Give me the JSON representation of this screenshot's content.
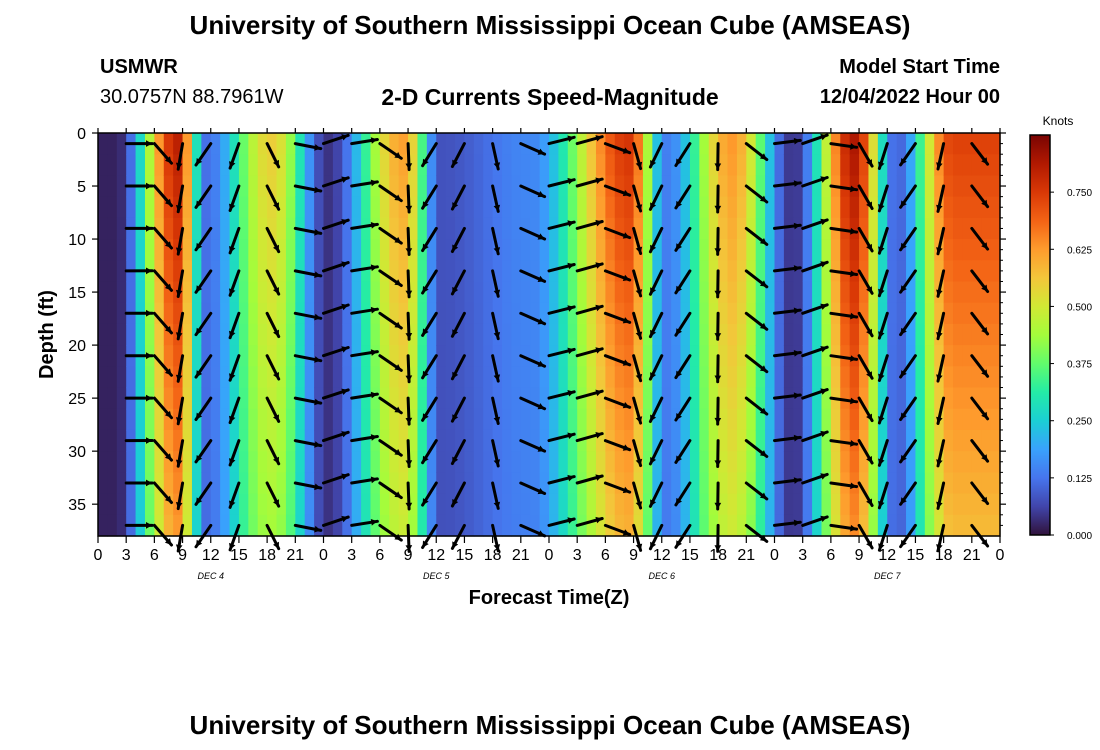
{
  "title": "University of Southern Mississippi Ocean Cube (AMSEAS)",
  "footer_title": "University of Southern Mississippi Ocean Cube (AMSEAS)",
  "station": {
    "name": "USMWR",
    "coords": "30.0757N  88.7961W"
  },
  "model": {
    "label": "Model Start Time",
    "start": "12/04/2022 Hour 00"
  },
  "chart_data": {
    "type": "heatmap",
    "title": "2-D Currents Speed-Magnitude",
    "xlabel": "Forecast Time(Z)",
    "ylabel": "Depth (ft)",
    "units": "Knots",
    "x_range_hours": [
      0,
      96
    ],
    "y_range_ft": [
      0,
      38
    ],
    "x_tick_labels": [
      "0",
      "3",
      "6",
      "9",
      "12",
      "15",
      "18",
      "21",
      "0",
      "3",
      "6",
      "9",
      "12",
      "15",
      "18",
      "21",
      "0",
      "3",
      "6",
      "9",
      "12",
      "15",
      "18",
      "21",
      "0",
      "3",
      "6",
      "9",
      "12",
      "15",
      "18",
      "21",
      "0"
    ],
    "y_tick_labels": [
      "0",
      "5",
      "10",
      "15",
      "20",
      "25",
      "30",
      "35"
    ],
    "day_labels": [
      {
        "label": "DEC 4",
        "hour": 12
      },
      {
        "label": "DEC 5",
        "hour": 36
      },
      {
        "label": "DEC 6",
        "hour": 60
      },
      {
        "label": "DEC 7",
        "hour": 84
      }
    ],
    "colorbar_ticks": [
      "0.000",
      "0.125",
      "0.250",
      "0.375",
      "0.500",
      "0.625",
      "0.750"
    ],
    "colorbar_range": [
      0,
      0.875
    ],
    "colorbar_colors": [
      "#30123b",
      "#4145ab",
      "#4675ed",
      "#39a2fc",
      "#1bcfd4",
      "#24eca6",
      "#61fc6c",
      "#a4fc3b",
      "#d1e834",
      "#f3c63a",
      "#fe9b2d",
      "#f36315",
      "#d93806",
      "#b11901",
      "#7a0403"
    ],
    "speed_peaks": [
      {
        "hour": 8.5,
        "peak_knots": 0.8
      },
      {
        "hour": 18.5,
        "peak_knots": 0.55
      },
      {
        "hour": 32.5,
        "peak_knots": 0.62
      },
      {
        "hour": 56.5,
        "peak_knots": 0.76
      },
      {
        "hour": 67.5,
        "peak_knots": 0.63
      },
      {
        "hour": 80.5,
        "peak_knots": 0.82
      },
      {
        "hour": 91.0,
        "peak_knots": 0.74
      }
    ],
    "speed_lows": [
      {
        "hour": 2.0,
        "knots": 0.02
      },
      {
        "hour": 11.5,
        "knots": 0.12
      },
      {
        "hour": 24.5,
        "knots": 0.04
      },
      {
        "hour": 36.5,
        "knots": 0.08
      },
      {
        "hour": 46.0,
        "knots": 0.15
      },
      {
        "hour": 60.5,
        "knots": 0.14
      },
      {
        "hour": 74.0,
        "knots": 0.04
      },
      {
        "hour": 85.0,
        "knots": 0.1
      }
    ],
    "arrow_hours": [
      3,
      6,
      9,
      12,
      15,
      18,
      21,
      24,
      27,
      30,
      33,
      36,
      39,
      42,
      45,
      48,
      51,
      54,
      57,
      60,
      63,
      66,
      69,
      72,
      75,
      78,
      81,
      84,
      87,
      90,
      93
    ],
    "arrow_depths_ft": [
      1,
      5,
      9,
      13,
      17,
      21,
      25,
      29,
      33,
      37
    ]
  }
}
